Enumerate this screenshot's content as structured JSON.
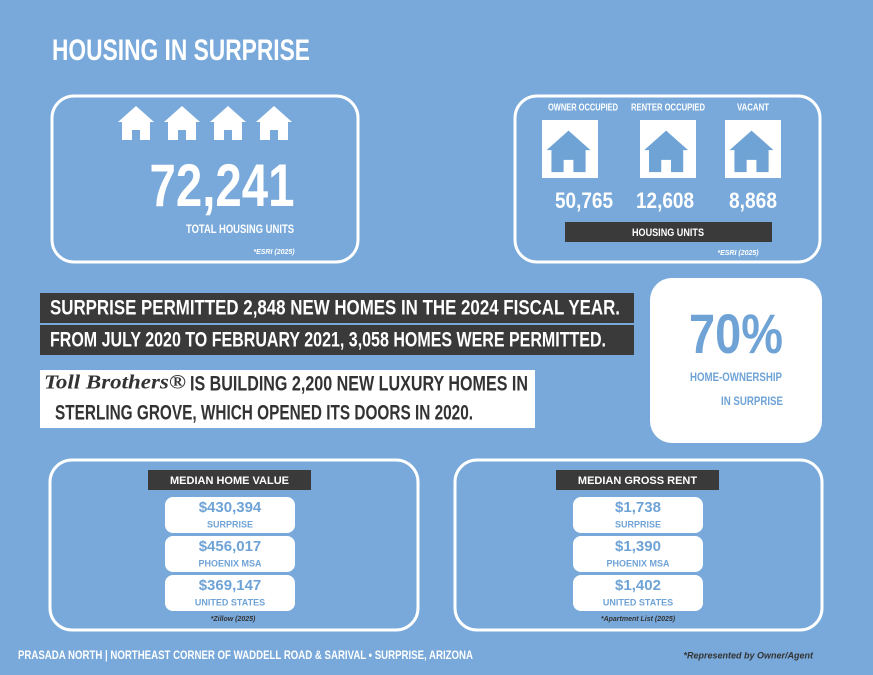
{
  "header": {
    "title": "HOUSING IN SURPRISE"
  },
  "total_units": {
    "value": "72,241",
    "label": "TOTAL HOUSING UNITS",
    "source": "*ESRI (2025)"
  },
  "occupancy": {
    "columns": [
      {
        "label": "OWNER OCCUPIED",
        "value": "50,765"
      },
      {
        "label": "RENTER OCCUPIED",
        "value": "12,608"
      },
      {
        "label": "VACANT",
        "value": "8,868"
      }
    ],
    "caption": "HOUSING UNITS",
    "source": "*ESRI (2025)"
  },
  "highlights": [
    "SURPRISE PERMITTED 2,848 NEW HOMES IN THE 2024 FISCAL YEAR.",
    "FROM JULY 2020 TO FEBRUARY 2021, 3,058 HOMES WERE PERMITTED."
  ],
  "toll_brothers": {
    "logo": "Toll Brothers®",
    "line1": "IS BUILDING 2,200  NEW LUXURY HOMES IN",
    "line2": "STERLING GROVE, WHICH OPENED ITS DOORS IN 2020."
  },
  "ownership": {
    "value": "70%",
    "label_line1": "HOME-OWNERSHIP",
    "label_line2": "IN SURPRISE"
  },
  "median_home_value": {
    "title": "MEDIAN HOME VALUE",
    "rows": [
      {
        "value": "$430,394",
        "label": "SURPRISE"
      },
      {
        "value": "$456,017",
        "label": "PHOENIX MSA"
      },
      {
        "value": "$369,147",
        "label": "UNITED STATES"
      }
    ],
    "source": "*Zillow (2025)"
  },
  "median_gross_rent": {
    "title": "MEDIAN GROSS RENT",
    "rows": [
      {
        "value": "$1,738",
        "label": "SURPRISE"
      },
      {
        "value": "$1,390",
        "label": "PHOENIX MSA"
      },
      {
        "value": "$1,402",
        "label": "UNITED STATES"
      }
    ],
    "source": "*Apartment List (2025)"
  },
  "footer": {
    "address": "PRASADA NORTH | NORTHEAST CORNER OF WADDELL ROAD & SARIVAL • SURPRISE, ARIZONA",
    "note": "*Represented by Owner/Agent"
  }
}
